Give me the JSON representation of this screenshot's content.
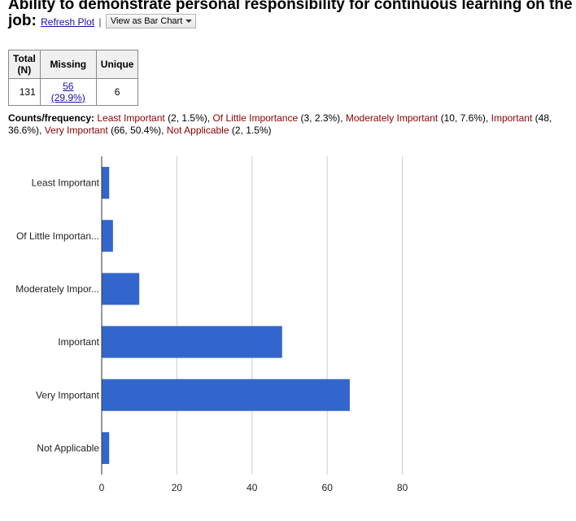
{
  "title": {
    "text": "Ability to demonstrate personal responsibility for continuous learning on the job:",
    "refresh_label": "Refresh Plot",
    "separator": "|",
    "view_as_label": "View as Bar Chart"
  },
  "stats": {
    "headers": [
      "Total (N)",
      "Missing",
      "Unique"
    ],
    "total": "131",
    "missing": "56 (29.9%)",
    "unique": "6"
  },
  "counts": {
    "label": "Counts/frequency:",
    "items": [
      {
        "category": "Least Important",
        "detail": " (2, 1.5%), "
      },
      {
        "category": "Of Little Importance",
        "detail": " (3, 2.3%), "
      },
      {
        "category": "Moderately Important",
        "detail": " (10, 7.6%), "
      },
      {
        "category": "Important",
        "detail": " (48, 36.6%), "
      },
      {
        "category": "Very Important",
        "detail": " (66, 50.4%), "
      },
      {
        "category": "Not Applicable",
        "detail": " (2, 1.5%)"
      }
    ]
  },
  "chart_data": {
    "type": "bar",
    "orientation": "horizontal",
    "categories": [
      "Least Important",
      "Of Little Importan...",
      "Moderately Impor...",
      "Important",
      "Very Important",
      "Not Applicable"
    ],
    "values": [
      2,
      3,
      10,
      48,
      66,
      2
    ],
    "xlim": [
      0,
      80
    ],
    "xticks": [
      0,
      20,
      40,
      60,
      80
    ],
    "grid": "vertical",
    "bar_color": "#3366cc",
    "grid_color": "#cccccc",
    "axis_color": "#333333"
  }
}
